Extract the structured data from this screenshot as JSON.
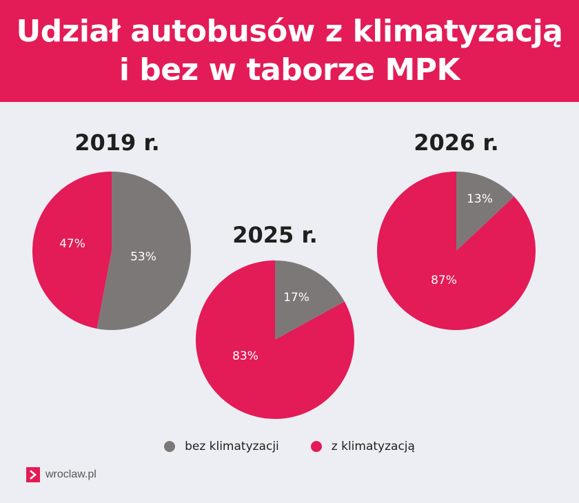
{
  "header": {
    "title_line1": "Udział autobusów z klimatyzacją",
    "title_line2": "i bez w taborze MPK"
  },
  "colors": {
    "bez": "#7d7878",
    "z": "#e31b56",
    "header_bg": "#e31b56",
    "background": "#edeef3"
  },
  "chart_data": [
    {
      "type": "pie",
      "title": "2019 r.",
      "slices": [
        {
          "name": "bez klimatyzacji",
          "value": 53,
          "label": "53%"
        },
        {
          "name": "z klimatyzacją",
          "value": 47,
          "label": "47%"
        }
      ]
    },
    {
      "type": "pie",
      "title": "2025 r.",
      "slices": [
        {
          "name": "bez klimatyzacji",
          "value": 17,
          "label": "17%"
        },
        {
          "name": "z klimatyzacją",
          "value": 83,
          "label": "83%"
        }
      ]
    },
    {
      "type": "pie",
      "title": "2026 r.",
      "slices": [
        {
          "name": "bez klimatyzacji",
          "value": 13,
          "label": "13%"
        },
        {
          "name": "z klimatyzacją",
          "value": 87,
          "label": "87%"
        }
      ]
    }
  ],
  "legend": {
    "position": "bottom",
    "items": [
      {
        "label": "bez klimatyzacji",
        "color": "#7d7878"
      },
      {
        "label": "z klimatyzacją",
        "color": "#e31b56"
      }
    ]
  },
  "brand": {
    "text": "wroclaw.pl",
    "icon": "chevron-right-icon"
  }
}
